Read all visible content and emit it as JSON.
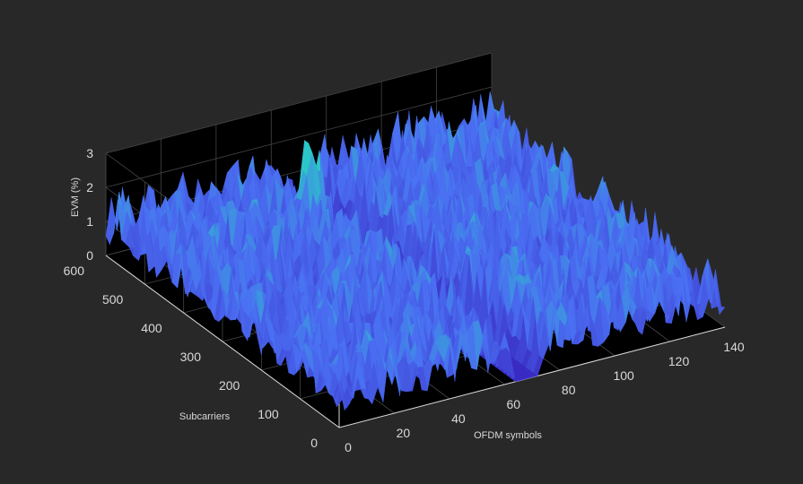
{
  "chart_data": {
    "type": "surface3d",
    "title": "",
    "xlabel": "OFDM symbols",
    "ylabel": "Subcarriers",
    "zlabel": "EVM (%)",
    "xlim": [
      0,
      140
    ],
    "ylim": [
      0,
      600
    ],
    "zlim": [
      0,
      3
    ],
    "x_ticks": [
      0,
      20,
      40,
      60,
      80,
      100,
      120,
      140
    ],
    "y_ticks": [
      0,
      100,
      200,
      300,
      400,
      500,
      600
    ],
    "z_ticks": [
      0,
      1,
      2,
      3
    ],
    "grid": true,
    "colormap": "parula",
    "background_color": "#282828",
    "axes_color": "#000000",
    "grid_color": "#444444",
    "text_color": "#d9d9d9",
    "surface_fill_color": "#4a35d0",
    "surface_peak_color": "#2bc6c8",
    "evm_baseline": 0.9,
    "evm_noise_range": [
      0.4,
      2.0
    ],
    "max_peak": {
      "x": 58,
      "y": 490,
      "evm": 2.9
    },
    "notch_symbols": [
      64,
      72
    ],
    "notch_evm": 0.0,
    "symbols": 140,
    "subcarriers": 600
  }
}
